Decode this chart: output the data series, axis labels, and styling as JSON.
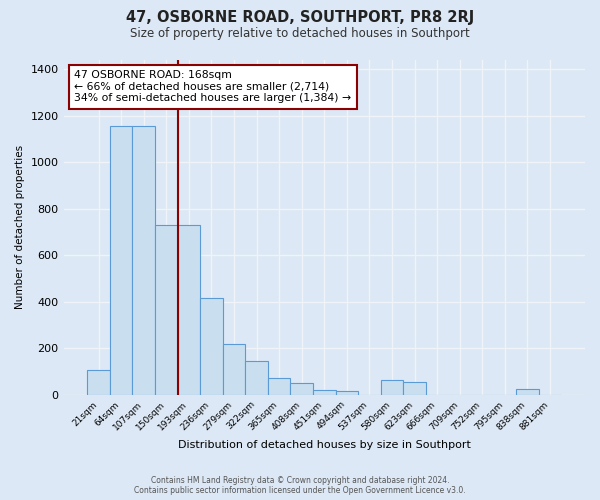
{
  "title": "47, OSBORNE ROAD, SOUTHPORT, PR8 2RJ",
  "subtitle": "Size of property relative to detached houses in Southport",
  "xlabel": "Distribution of detached houses by size in Southport",
  "ylabel": "Number of detached properties",
  "bar_labels": [
    "21sqm",
    "64sqm",
    "107sqm",
    "150sqm",
    "193sqm",
    "236sqm",
    "279sqm",
    "322sqm",
    "365sqm",
    "408sqm",
    "451sqm",
    "494sqm",
    "537sqm",
    "580sqm",
    "623sqm",
    "666sqm",
    "709sqm",
    "752sqm",
    "795sqm",
    "838sqm",
    "881sqm"
  ],
  "bar_values": [
    105,
    1155,
    1155,
    730,
    730,
    415,
    220,
    145,
    70,
    50,
    20,
    15,
    0,
    65,
    55,
    0,
    0,
    0,
    0,
    25,
    0
  ],
  "bar_color": "#c9dff0",
  "bar_edge_color": "#5b9bd5",
  "vline_x": 3.5,
  "vline_color": "#8b0000",
  "annotation_title": "47 OSBORNE ROAD: 168sqm",
  "annotation_line1": "← 66% of detached houses are smaller (2,714)",
  "annotation_line2": "34% of semi-detached houses are larger (1,384) →",
  "annotation_box_color": "#ffffff",
  "annotation_box_edge": "#8b0000",
  "ylim": [
    0,
    1440
  ],
  "yticks": [
    0,
    200,
    400,
    600,
    800,
    1000,
    1200,
    1400
  ],
  "footer1": "Contains HM Land Registry data © Crown copyright and database right 2024.",
  "footer2": "Contains public sector information licensed under the Open Government Licence v3.0.",
  "bg_color": "#dce8f5",
  "plot_bg": "#dce8f5",
  "grid_color": "#f0f4f8"
}
